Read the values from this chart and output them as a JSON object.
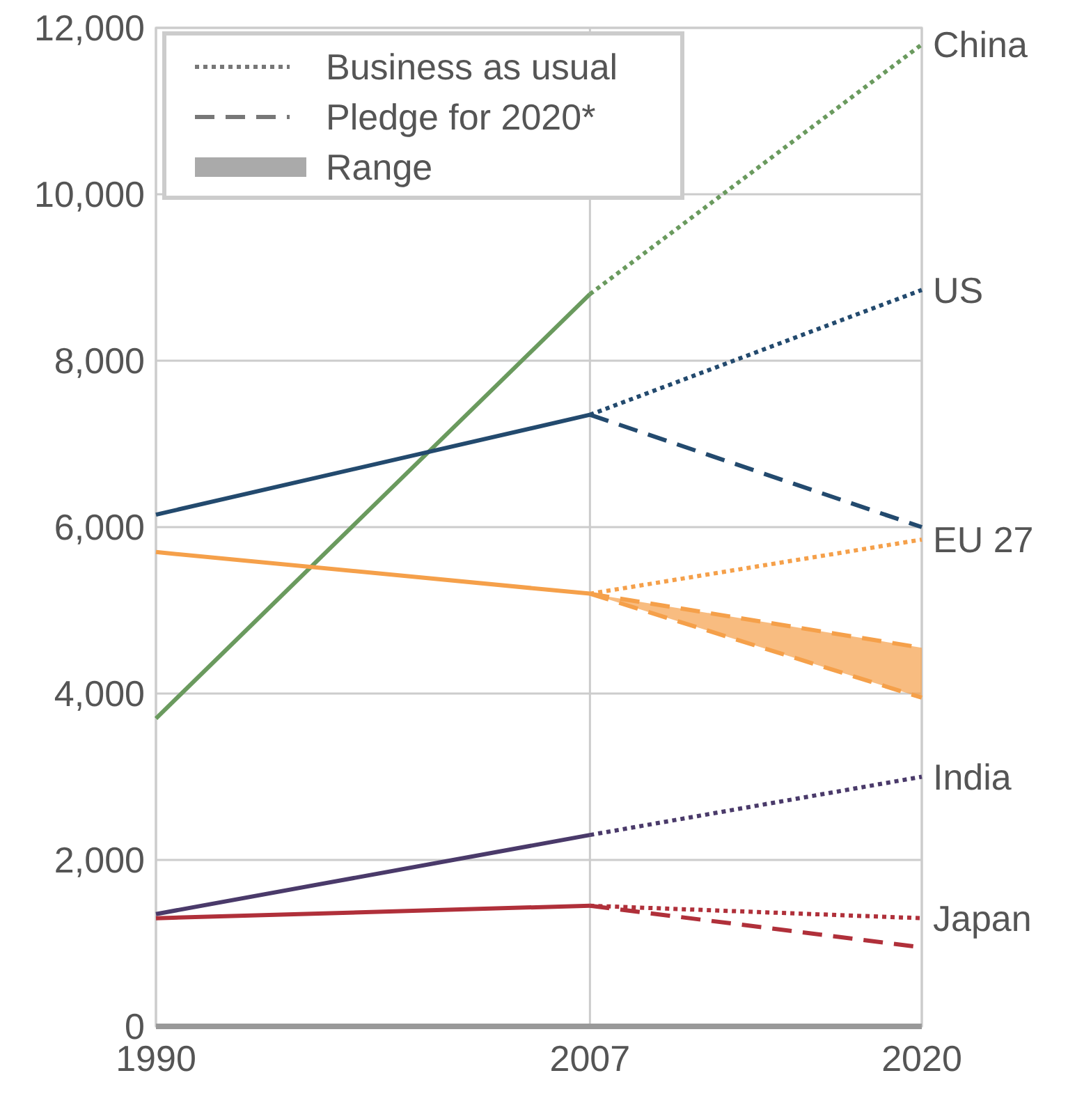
{
  "chart_data": {
    "type": "line",
    "xlim": [
      1990,
      2020
    ],
    "xticks": [
      {
        "value": 1990,
        "label": "1990"
      },
      {
        "value": 2007,
        "label": "2007"
      },
      {
        "value": 2020,
        "label": "2020"
      }
    ],
    "ylim": [
      0,
      12000
    ],
    "yticks": [
      0,
      {
        "value": 2000,
        "label": "2,000"
      },
      {
        "value": 4000,
        "label": "4,000"
      },
      {
        "value": 6000,
        "label": "6,000"
      },
      {
        "value": 8000,
        "label": "8,000"
      },
      {
        "value": 10000,
        "label": "10,000"
      },
      {
        "value": 12000,
        "label": "12,000"
      }
    ],
    "grid": true,
    "annotations": [
      "Business as usual",
      "Pledge for 2020*",
      "Range"
    ],
    "series": [
      {
        "color": "#6a9a5e",
        "x": [
          1990,
          2007
        ],
        "values": [
          3700,
          8800
        ]
      },
      {
        "name": "China",
        "color": "#6a9a5e",
        "x": [
          2007,
          2020
        ],
        "values": [
          8800,
          11800
        ],
        "line_style": "dotted"
      },
      {
        "color": "#234a6e",
        "x": [
          1990,
          2007
        ],
        "values": [
          6150,
          7350
        ]
      },
      {
        "name": "US",
        "color": "#234a6e",
        "x": [
          2007,
          2020
        ],
        "values": [
          7350,
          8850
        ],
        "line_style": "dotted"
      },
      {
        "color": "#234a6e",
        "x": [
          2007,
          2020
        ],
        "values": [
          7350,
          6000
        ],
        "line_style": "dashed"
      },
      {
        "color": "#f5a04a",
        "x": [
          1990,
          2007
        ],
        "values": [
          5700,
          5200
        ]
      },
      {
        "name": "EU 27",
        "color": "#f5a04a",
        "x": [
          2007,
          2020
        ],
        "values": [
          5200,
          5850
        ],
        "line_style": "dotted"
      },
      {
        "color": "#f5a04a",
        "x": [
          2007,
          2020
        ],
        "values": [
          5200,
          4550
        ],
        "lower": [
          5200,
          3950
        ],
        "upper": [
          5200,
          4550
        ],
        "line_style": "dashed"
      },
      {
        "color": "#f5a04a",
        "x": [
          2007,
          2020
        ],
        "values": [
          5200,
          3950
        ],
        "line_style": "dashed"
      },
      {
        "color": "#4a3a6a",
        "x": [
          1990,
          2007
        ],
        "values": [
          1350,
          2300
        ]
      },
      {
        "name": "India",
        "color": "#4a3a6a",
        "x": [
          2007,
          2020
        ],
        "values": [
          2300,
          3000
        ],
        "line_style": "dotted"
      },
      {
        "color": "#b0303a",
        "x": [
          1990,
          2007
        ],
        "values": [
          1300,
          1450
        ]
      },
      {
        "name": "Japan",
        "color": "#b0303a",
        "x": [
          2007,
          2020
        ],
        "values": [
          1450,
          1300
        ],
        "line_style": "dotted"
      },
      {
        "color": "#b0303a",
        "x": [
          2007,
          2020
        ],
        "values": [
          1450,
          950
        ],
        "line_style": "dashed"
      }
    ]
  }
}
